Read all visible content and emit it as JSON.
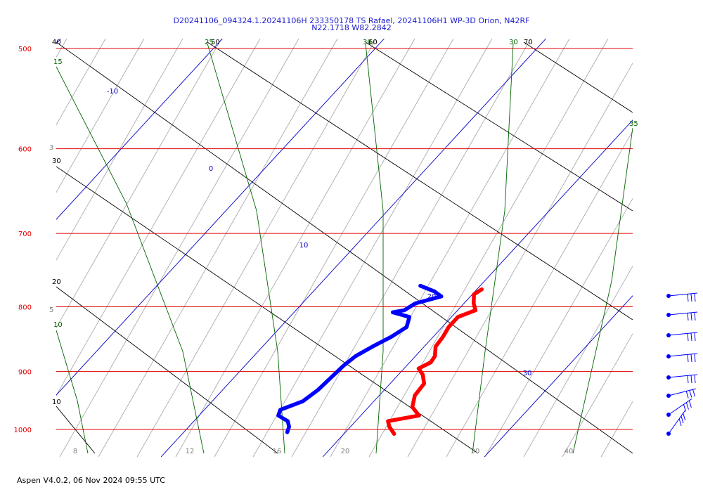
{
  "header": {
    "line1": "D20241106_094324.1.20241106H 233350178 TS Rafael, 20241106H1 WP-3D Orion, N42RF",
    "line2": "N22.1718 W82.2842"
  },
  "footer": "Aspen V4.0.2, 06 Nov  2024  09:55 UTC",
  "colors": {
    "isobar": "#e00000",
    "isotherm": "#0000c8",
    "dry_adiabat": "#000000",
    "moist_adiabat": "#006400",
    "mixing_ratio": "#a0a0a0",
    "temperature": "#ff0000",
    "dewpoint": "#0000ff"
  },
  "chart_data": {
    "type": "line",
    "diagram": "skew-T log-p",
    "pressure_range_hPa": [
      1020,
      500
    ],
    "temperature_range_C": [
      5,
      29
    ],
    "pressure_levels": [
      {
        "p": 500,
        "label": "500"
      },
      {
        "p": 600,
        "label": "600"
      },
      {
        "p": 700,
        "label": "700"
      },
      {
        "p": 800,
        "label": "800"
      },
      {
        "p": 900,
        "label": "900"
      },
      {
        "p": 1000,
        "label": "1000"
      }
    ],
    "isotherms": [
      {
        "t": -10,
        "label": "-10"
      },
      {
        "t": 0,
        "label": "0"
      },
      {
        "t": 10,
        "label": "10"
      },
      {
        "t": 20,
        "label": "20"
      },
      {
        "t": 30,
        "label": "30"
      }
    ],
    "bottom_temperature_labels": [
      "8",
      "12",
      "16",
      "20",
      "30",
      "40"
    ],
    "mixing_ratio_labels": [
      {
        "p": 600,
        "label": "3"
      },
      {
        "p": 800,
        "label": "5"
      }
    ],
    "dry_adiabats": [
      {
        "label": "40",
        "pts": [
          [
            80,
            60
          ],
          [
            900,
            645
          ]
        ]
      },
      {
        "label": "30",
        "pts": [
          [
            80,
            237
          ],
          [
            680,
            645
          ]
        ]
      },
      {
        "label": "20",
        "pts": [
          [
            80,
            408
          ],
          [
            395,
            645
          ]
        ]
      },
      {
        "label": "10",
        "pts": [
          [
            80,
            578
          ],
          [
            135,
            645
          ]
        ]
      },
      {
        "label": "50",
        "pts": [
          [
            295,
            60
          ],
          [
            900,
            455
          ]
        ]
      },
      {
        "label": "60",
        "pts": [
          [
            520,
            60
          ],
          [
            900,
            300
          ]
        ]
      },
      {
        "label": "70",
        "pts": [
          [
            745,
            60
          ],
          [
            900,
            160
          ]
        ]
      }
    ],
    "moist_adiabats": [
      {
        "label": "15",
        "pts": [
          [
            80,
            95
          ],
          [
            180,
            290
          ],
          [
            260,
            500
          ],
          [
            290,
            645
          ]
        ]
      },
      {
        "label": "25",
        "pts": [
          [
            295,
            62
          ],
          [
            365,
            300
          ],
          [
            395,
            500
          ],
          [
            405,
            645
          ]
        ]
      },
      {
        "label": "30",
        "pts": [
          [
            520,
            62
          ],
          [
            545,
            300
          ],
          [
            545,
            500
          ],
          [
            535,
            645
          ]
        ]
      },
      {
        "label": "10",
        "pts": [
          [
            80,
            470
          ],
          [
            110,
            570
          ],
          [
            125,
            645
          ]
        ]
      },
      {
        "label": "30",
        "pts": [
          [
            730,
            62
          ],
          [
            718,
            300
          ],
          [
            690,
            500
          ],
          [
            672,
            645
          ]
        ]
      },
      {
        "label": "35",
        "pts": [
          [
            900,
            182
          ],
          [
            870,
            400
          ],
          [
            815,
            645
          ]
        ]
      }
    ],
    "series": [
      {
        "name": "",
        "profile": "temperature",
        "points": [
          {
            "p": 775,
            "t": 20.3
          },
          {
            "p": 782,
            "t": 20.1
          },
          {
            "p": 795,
            "t": 20.6
          },
          {
            "p": 805,
            "t": 21.1
          },
          {
            "p": 815,
            "t": 20.4
          },
          {
            "p": 830,
            "t": 20.4
          },
          {
            "p": 845,
            "t": 20.6
          },
          {
            "p": 860,
            "t": 20.7
          },
          {
            "p": 875,
            "t": 21.2
          },
          {
            "p": 885,
            "t": 21.3
          },
          {
            "p": 895,
            "t": 20.9
          },
          {
            "p": 905,
            "t": 21.5
          },
          {
            "p": 920,
            "t": 22.1
          },
          {
            "p": 940,
            "t": 22.2
          },
          {
            "p": 960,
            "t": 22.7
          },
          {
            "p": 975,
            "t": 23.6
          },
          {
            "p": 985,
            "t": 22.0
          },
          {
            "p": 995,
            "t": 22.4
          },
          {
            "p": 1008,
            "t": 23.1
          }
        ]
      },
      {
        "name": "",
        "profile": "dewpoint",
        "points": [
          {
            "p": 770,
            "t": 16.3
          },
          {
            "p": 778,
            "t": 17.5
          },
          {
            "p": 785,
            "t": 18.2
          },
          {
            "p": 795,
            "t": 17.0
          },
          {
            "p": 805,
            "t": 16.7
          },
          {
            "p": 808,
            "t": 16.1
          },
          {
            "p": 815,
            "t": 17.4
          },
          {
            "p": 830,
            "t": 17.8
          },
          {
            "p": 845,
            "t": 17.4
          },
          {
            "p": 860,
            "t": 16.8
          },
          {
            "p": 875,
            "t": 16.3
          },
          {
            "p": 890,
            "t": 16.1
          },
          {
            "p": 910,
            "t": 16.0
          },
          {
            "p": 930,
            "t": 15.9
          },
          {
            "p": 950,
            "t": 15.6
          },
          {
            "p": 965,
            "t": 14.7
          },
          {
            "p": 975,
            "t": 14.9
          },
          {
            "p": 985,
            "t": 15.8
          },
          {
            "p": 995,
            "t": 16.2
          },
          {
            "p": 1005,
            "t": 16.4
          }
        ]
      }
    ],
    "wind_barbs": [
      {
        "p": 800
      },
      {
        "p": 830
      },
      {
        "p": 860
      },
      {
        "p": 890
      },
      {
        "p": 920
      },
      {
        "p": 950
      },
      {
        "p": 980
      },
      {
        "p": 1010
      }
    ]
  }
}
